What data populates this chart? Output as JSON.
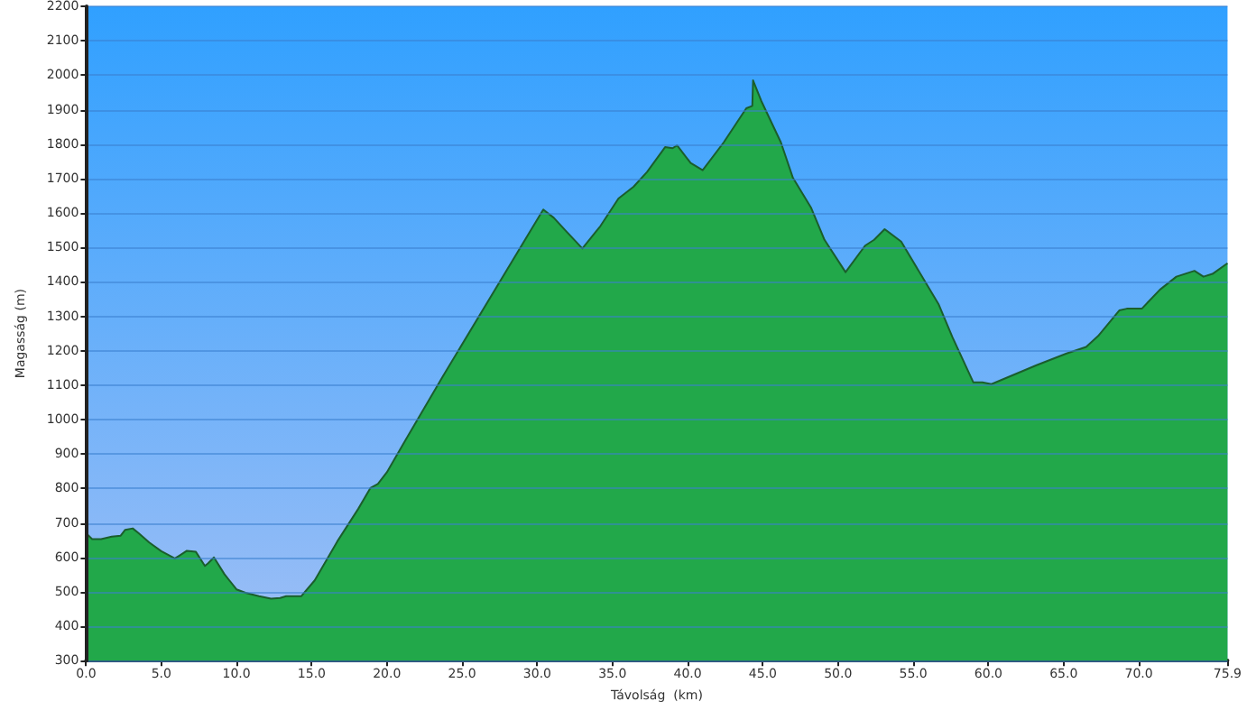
{
  "chart_data": {
    "type": "area",
    "xlabel": "Távolság  (km)",
    "ylabel": "Magasság (m)",
    "xlim": [
      0,
      75.9
    ],
    "ylim": [
      300,
      2200
    ],
    "xticks": [
      {
        "value": 0,
        "label": "0.0"
      },
      {
        "value": 5,
        "label": "5.0"
      },
      {
        "value": 10,
        "label": "10.0"
      },
      {
        "value": 15,
        "label": "15.0"
      },
      {
        "value": 20,
        "label": "20.0"
      },
      {
        "value": 25,
        "label": "25.0"
      },
      {
        "value": 30,
        "label": "30.0"
      },
      {
        "value": 35,
        "label": "35.0"
      },
      {
        "value": 40,
        "label": "40.0"
      },
      {
        "value": 45,
        "label": "45.0"
      },
      {
        "value": 50,
        "label": "50.0"
      },
      {
        "value": 55,
        "label": "55.0"
      },
      {
        "value": 60,
        "label": "60.0"
      },
      {
        "value": 65,
        "label": "65.0"
      },
      {
        "value": 70,
        "label": "70.0"
      },
      {
        "value": 75.9,
        "label": "75.9"
      }
    ],
    "yticks": [
      300,
      400,
      500,
      600,
      700,
      800,
      900,
      1000,
      1100,
      1200,
      1300,
      1400,
      1500,
      1600,
      1700,
      1800,
      1900,
      2000,
      2100,
      2200
    ],
    "grid": "y",
    "marker": "none",
    "line_style": "solid",
    "series": [
      {
        "color": "#22a84a",
        "x": [
          0,
          0.4,
          1,
          1.7,
          2.3,
          2.6,
          3.1,
          3.5,
          4.2,
          5,
          5.9,
          6.2,
          6.7,
          7.3,
          7.9,
          8.1,
          8.5,
          9.2,
          10,
          10.6,
          11.5,
          12.3,
          12.9,
          13.3,
          14,
          14.3,
          15.2,
          16.7,
          18.1,
          18.9,
          19.4,
          20,
          21.3,
          23.7,
          30.4,
          31.1,
          31.9,
          33,
          34.2,
          35.4,
          36.4,
          37.3,
          38.5,
          39,
          39.3,
          40.2,
          41,
          42.4,
          43.9,
          44.3,
          44.35,
          44.9,
          46.2,
          47,
          48.2,
          49.1,
          50.5,
          51.8,
          52.4,
          53.1,
          54.2,
          56.7,
          57.6,
          59,
          59.6,
          60.2,
          63.2,
          65.2,
          66.5,
          67.3,
          68.7,
          69.2,
          70.2,
          71.4,
          72.5,
          73.7,
          74.3,
          74.9,
          75.9
        ],
        "values": [
          670,
          653,
          653,
          660,
          663,
          680,
          684,
          670,
          643,
          618,
          597,
          605,
          619,
          616,
          575,
          582,
          600,
          551,
          507,
          497,
          487,
          480,
          482,
          487,
          487,
          487,
          533,
          646,
          741,
          801,
          813,
          847,
          945,
          1124,
          1610,
          1586,
          1548,
          1497,
          1562,
          1642,
          1676,
          1719,
          1791,
          1788,
          1796,
          1745,
          1724,
          1805,
          1904,
          1911,
          1985,
          1925,
          1805,
          1702,
          1616,
          1522,
          1428,
          1505,
          1522,
          1553,
          1517,
          1334,
          1240,
          1108,
          1108,
          1103,
          1158,
          1192,
          1211,
          1243,
          1317,
          1322,
          1322,
          1377,
          1415,
          1432,
          1415,
          1423,
          1454
        ]
      }
    ]
  }
}
